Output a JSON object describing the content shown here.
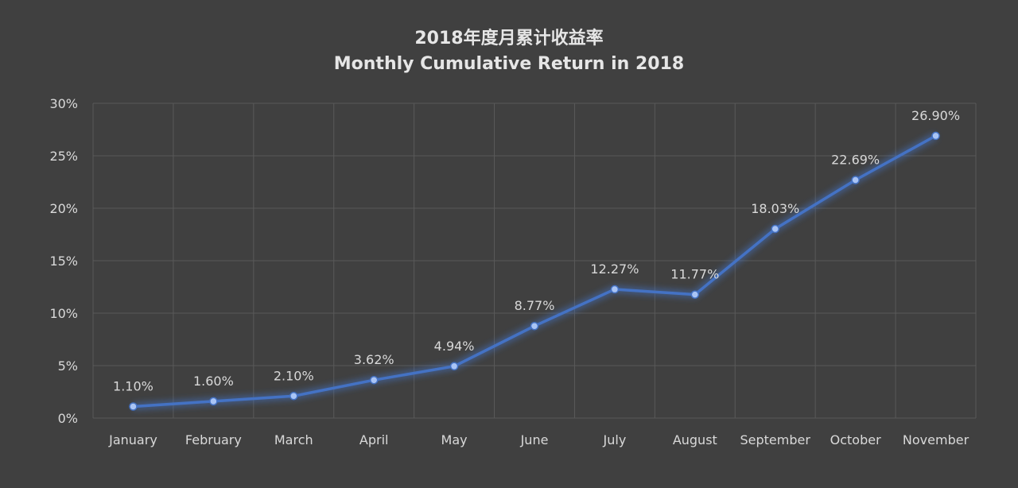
{
  "chart_data": {
    "type": "line",
    "title": "2018年度月累计收益率",
    "subtitle": "Monthly Cumulative Return in 2018",
    "xlabel": "",
    "ylabel": "",
    "categories": [
      "January",
      "February",
      "March",
      "April",
      "May",
      "June",
      "July",
      "August",
      "September",
      "October",
      "November"
    ],
    "series": [
      {
        "values": [
          1.1,
          1.6,
          2.1,
          3.62,
          4.94,
          8.77,
          12.27,
          11.77,
          18.03,
          22.69,
          26.9
        ],
        "labels": [
          "1.10%",
          "1.60%",
          "2.10%",
          "3.62%",
          "4.94%",
          "8.77%",
          "12.27%",
          "11.77%",
          "18.03%",
          "22.69%",
          "26.90%"
        ]
      }
    ],
    "ylim": [
      0,
      30
    ],
    "yticks": [
      "0%",
      "5%",
      "10%",
      "15%",
      "20%",
      "25%",
      "30%"
    ],
    "grid": true,
    "legend": "none",
    "colors": {
      "background": "#404040",
      "line": "#4472c4",
      "grid": "#595959",
      "text": "#d9d9d9"
    }
  }
}
